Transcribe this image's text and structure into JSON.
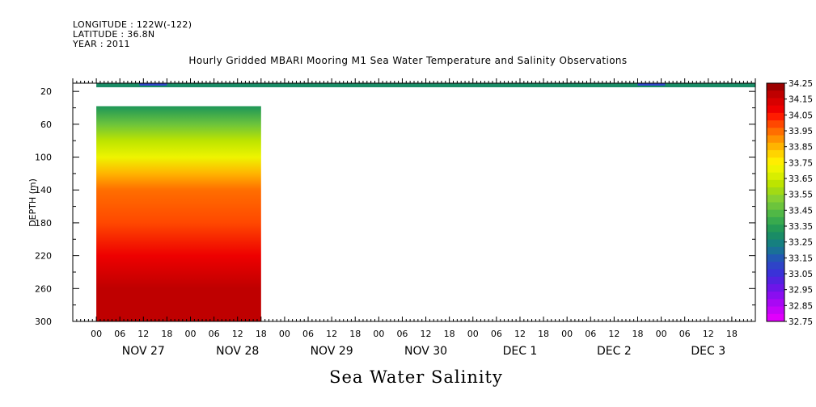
{
  "header": {
    "longitude": "LONGITUDE : 122W(-122)",
    "latitude": "LATITUDE : 36.8N",
    "year": "YEAR : 2011"
  },
  "chart_data": {
    "type": "heatmap",
    "title": "Hourly Gridded MBARI Mooring M1 Sea Water Temperature and Salinity Observations",
    "bottom_title": "Sea Water Salinity",
    "ylabel": "DEPTH (m)",
    "xlabel": "",
    "y_ticks": [
      20,
      60,
      100,
      140,
      180,
      220,
      260,
      300
    ],
    "ylim": [
      10,
      300
    ],
    "y_inverted": true,
    "x_range_hours": [
      -6,
      168
    ],
    "x_hour_ticks": [
      "00",
      "06",
      "12",
      "18",
      "00",
      "06",
      "12",
      "18",
      "00",
      "06",
      "12",
      "18",
      "00",
      "06",
      "12",
      "18",
      "00",
      "06",
      "12",
      "18",
      "00",
      "06",
      "12",
      "18",
      "00",
      "06",
      "12",
      "18"
    ],
    "x_day_labels": [
      "NOV 27",
      "NOV 28",
      "NOV 29",
      "NOV 30",
      "DEC  1",
      "DEC  2",
      "DEC  3"
    ],
    "colorbar": {
      "levels": [
        "34.25",
        "34.15",
        "34.05",
        "33.95",
        "33.85",
        "33.75",
        "33.65",
        "33.55",
        "33.45",
        "33.35",
        "33.25",
        "33.15",
        "33.05",
        "32.95",
        "32.85",
        "32.75"
      ],
      "colors": [
        "#9c0000",
        "#bf0000",
        "#d80000",
        "#ee0000",
        "#ff1c00",
        "#ff4800",
        "#ff6e00",
        "#ff9200",
        "#ffb400",
        "#ffd400",
        "#ffee00",
        "#eef400",
        "#d8ee00",
        "#bde400",
        "#a2da14",
        "#86d032",
        "#6cc43c",
        "#50b846",
        "#38aa4e",
        "#249a56",
        "#1a8c66",
        "#168080",
        "#1a7098",
        "#2258b4",
        "#2e44c8",
        "#3a32d8",
        "#5222e0",
        "#6c16e8",
        "#8a0ef0",
        "#a808f4",
        "#c404f8",
        "#e000fc"
      ]
    },
    "surface_layer": {
      "depth": 10,
      "salinity_approx": 33.3,
      "time_range_hours": [
        0,
        168
      ]
    },
    "profile_block": {
      "time_range_hours": [
        0,
        42
      ],
      "depth_range": [
        38,
        300
      ]
    },
    "salinity_by_depth": [
      {
        "depth": 40,
        "salinity": 33.35
      },
      {
        "depth": 60,
        "salinity": 33.5
      },
      {
        "depth": 80,
        "salinity": 33.62
      },
      {
        "depth": 100,
        "salinity": 33.72
      },
      {
        "depth": 120,
        "salinity": 33.85
      },
      {
        "depth": 140,
        "salinity": 33.95
      },
      {
        "depth": 180,
        "salinity": 34.03
      },
      {
        "depth": 220,
        "salinity": 34.12
      },
      {
        "depth": 260,
        "salinity": 34.2
      },
      {
        "depth": 300,
        "salinity": 34.22
      }
    ],
    "grid": false,
    "legend": "right"
  }
}
